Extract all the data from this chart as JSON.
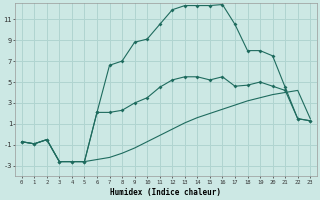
{
  "xlabel": "Humidex (Indice chaleur)",
  "bg_color": "#cce8e4",
  "grid_color": "#b0d4d0",
  "line_color": "#1e6b5e",
  "xlim": [
    -0.5,
    23.5
  ],
  "ylim": [
    -4,
    12.5
  ],
  "xticks": [
    0,
    1,
    2,
    3,
    4,
    5,
    6,
    7,
    8,
    9,
    10,
    11,
    12,
    13,
    14,
    15,
    16,
    17,
    18,
    19,
    20,
    21,
    22,
    23
  ],
  "yticks": [
    -3,
    -1,
    1,
    3,
    5,
    7,
    9,
    11
  ],
  "line1_x": [
    0,
    1,
    2,
    3,
    4,
    5,
    6,
    7,
    8,
    9,
    10,
    11,
    12,
    13,
    14,
    15,
    16,
    17,
    18,
    19,
    20,
    21,
    22,
    23
  ],
  "line1_y": [
    -0.7,
    -0.9,
    -0.5,
    -2.6,
    -2.6,
    -2.6,
    -2.4,
    -2.2,
    -1.8,
    -1.3,
    -0.7,
    -0.1,
    0.5,
    1.1,
    1.6,
    2.0,
    2.4,
    2.8,
    3.2,
    3.5,
    3.8,
    4.0,
    4.2,
    1.5
  ],
  "line2_x": [
    0,
    1,
    2,
    3,
    4,
    5,
    6,
    7,
    8,
    9,
    10,
    11,
    12,
    13,
    14,
    15,
    16,
    17,
    18,
    19,
    20,
    21,
    22,
    23
  ],
  "line2_y": [
    -0.7,
    -0.9,
    -0.5,
    -2.6,
    -2.6,
    -2.6,
    2.1,
    2.1,
    2.3,
    3.0,
    3.5,
    4.5,
    5.2,
    5.5,
    5.5,
    5.2,
    5.5,
    4.6,
    4.7,
    5.0,
    4.6,
    4.2,
    1.5,
    1.3
  ],
  "line3_x": [
    0,
    1,
    2,
    3,
    4,
    5,
    6,
    7,
    8,
    9,
    10,
    11,
    12,
    13,
    14,
    15,
    16,
    17,
    18,
    19,
    20,
    21,
    22,
    23
  ],
  "line3_y": [
    -0.7,
    -0.9,
    -0.5,
    -2.6,
    -2.6,
    -2.6,
    2.1,
    6.6,
    7.0,
    8.8,
    9.1,
    10.5,
    11.9,
    12.3,
    12.3,
    12.3,
    12.4,
    10.5,
    8.0,
    8.0,
    7.5,
    4.5,
    1.5,
    1.3
  ]
}
